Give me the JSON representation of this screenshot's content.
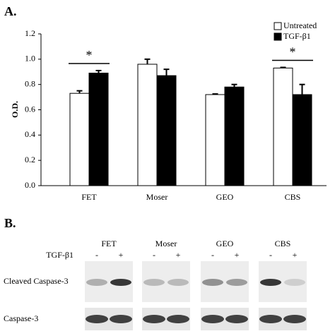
{
  "chart_data": {
    "type": "bar",
    "panel_label": "A.",
    "ylabel": "O.D.",
    "categories": [
      "FET",
      "Moser",
      "GEO",
      "CBS"
    ],
    "series": [
      {
        "name": "Untreated",
        "color": "#ffffff",
        "values": [
          0.73,
          0.96,
          0.72,
          0.93
        ],
        "errors": [
          0.02,
          0.04,
          0.005,
          0.005
        ]
      },
      {
        "name": "TGF-β1",
        "color": "#000000",
        "values": [
          0.89,
          0.87,
          0.78,
          0.72
        ],
        "errors": [
          0.02,
          0.05,
          0.02,
          0.08
        ]
      }
    ],
    "ylim": [
      0,
      1.2
    ],
    "yticks": [
      {
        "value": 0,
        "label": "0.0"
      },
      {
        "value": 0.2,
        "label": "0.2"
      },
      {
        "value": 0.4,
        "label": "0.4"
      },
      {
        "value": 0.6,
        "label": "0.6"
      },
      {
        "value": 0.8,
        "label": "0.8"
      },
      {
        "value": 1,
        "label": "1.0"
      },
      {
        "value": 1.2,
        "label": "1.2"
      }
    ],
    "annotations": [
      {
        "text": "*",
        "category": 0
      },
      {
        "text": "*",
        "category": 3
      }
    ],
    "legend": "upper right"
  },
  "panel_b": {
    "label": "B.",
    "cell_lines": [
      "FET",
      "Moser",
      "GEO",
      "CBS"
    ],
    "treatment_label": "TGF-β1",
    "lane_labels": [
      "-",
      "+"
    ],
    "rows": [
      "Cleaved Caspase-3",
      "Caspase-3"
    ]
  }
}
